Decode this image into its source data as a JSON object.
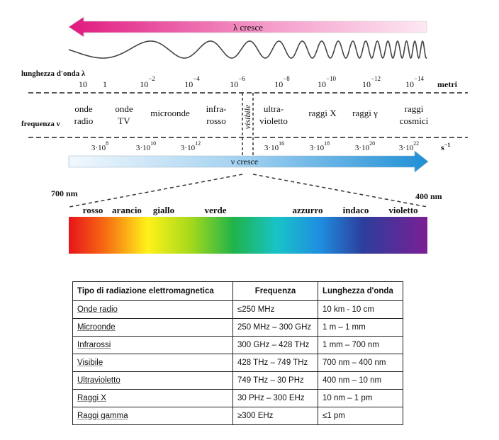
{
  "spectrum": {
    "lambda_arrow_label": "λ cresce",
    "nu_arrow_label": "ν cresce",
    "wavelength_axis": {
      "label": "lunghezza d'onda λ",
      "unit": "metri",
      "ticks": [
        {
          "base": "10",
          "exp": ""
        },
        {
          "base": "1",
          "exp": ""
        },
        {
          "base": "10",
          "exp": "−2"
        },
        {
          "base": "10",
          "exp": "−4"
        },
        {
          "base": "10",
          "exp": "−6"
        },
        {
          "base": "10",
          "exp": "−8"
        },
        {
          "base": "10",
          "exp": "−10"
        },
        {
          "base": "10",
          "exp": "−12"
        },
        {
          "base": "10",
          "exp": "−14"
        }
      ]
    },
    "frequency_axis": {
      "label": "frequenza ν",
      "unit": "s",
      "unit_exp": "−1",
      "ticks": [
        {
          "base": "3·10",
          "exp": "8"
        },
        {
          "base": "3·10",
          "exp": "10"
        },
        {
          "base": "3·10",
          "exp": "12"
        },
        {
          "base": "3·10",
          "exp": "16"
        },
        {
          "base": "3·10",
          "exp": "18"
        },
        {
          "base": "3·10",
          "exp": "20"
        },
        {
          "base": "3·10",
          "exp": "22"
        }
      ]
    },
    "regions": [
      {
        "lines": [
          "onde",
          "radio"
        ]
      },
      {
        "lines": [
          "onde",
          "TV"
        ]
      },
      {
        "lines": [
          "microonde"
        ]
      },
      {
        "lines": [
          "infra-",
          "rosso"
        ]
      },
      {
        "lines": [
          "ultra-",
          "violetto"
        ]
      },
      {
        "lines": [
          "raggi X"
        ]
      },
      {
        "lines": [
          "raggi γ"
        ]
      },
      {
        "lines": [
          "raggi",
          "cosmici"
        ]
      }
    ],
    "visible_label": "visibile",
    "visible_range": {
      "start": "700 nm",
      "end": "400 nm"
    },
    "colors": [
      "rosso",
      "arancio",
      "giallo",
      "verde",
      "azzurro",
      "indaco",
      "violetto"
    ]
  },
  "table": {
    "headers": [
      "Tipo di radiazione elettromagnetica",
      "Frequenza",
      "Lunghezza d'onda"
    ],
    "rows": [
      [
        "Onde radio",
        "≤250 MHz",
        "10 km - 10 cm"
      ],
      [
        "Microonde",
        "250 MHz – 300 GHz",
        "1 m – 1 mm"
      ],
      [
        "Infrarossi",
        "300 GHz – 428 THz",
        "1 mm – 700 nm"
      ],
      [
        "Visibile",
        "428 THz – 749 THz",
        "700 nm – 400 nm"
      ],
      [
        "Ultravioletto",
        "749 THz – 30 PHz",
        "400 nm – 10 nm"
      ],
      [
        "Raggi X",
        "30 PHz – 300 EHz",
        "10 nm – 1 pm"
      ],
      [
        "Raggi gamma",
        "≥300 EHz",
        "≤1 pm"
      ]
    ]
  }
}
